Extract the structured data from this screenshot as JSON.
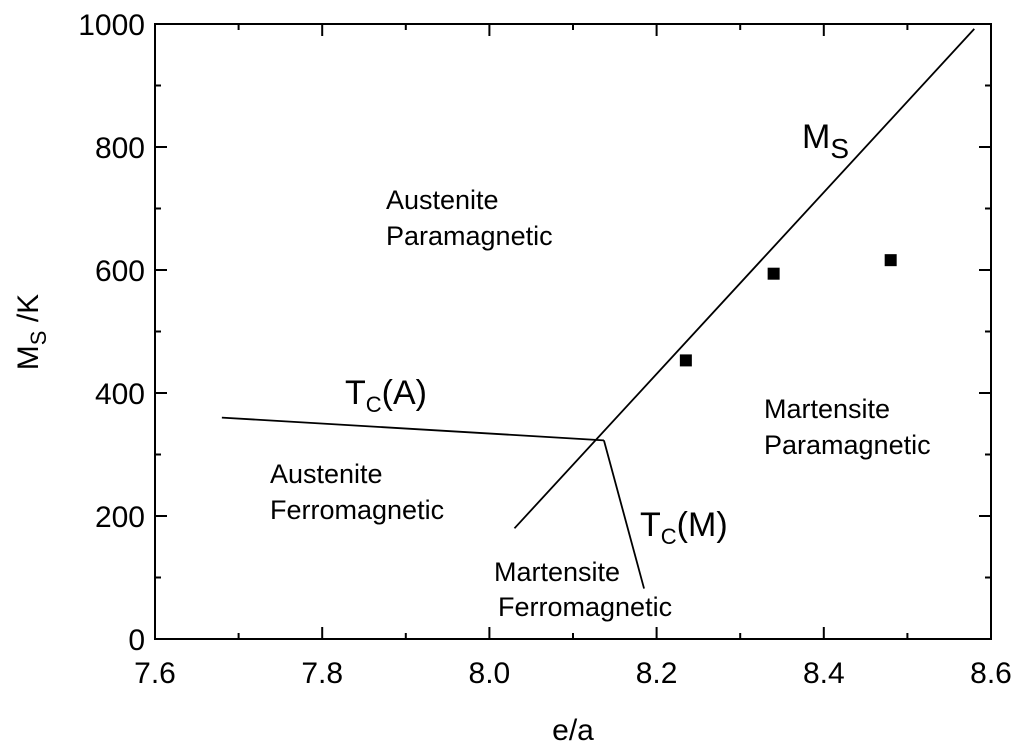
{
  "chart_data": {
    "type": "scatter",
    "xlabel": "e/a",
    "ylabel": {
      "main": "M",
      "sub": "S",
      "suffix": " /K"
    },
    "xlim": [
      7.6,
      8.6
    ],
    "ylim": [
      0,
      1000
    ],
    "xticks": [
      "7.6",
      "7.8",
      "8.0",
      "8.2",
      "8.4",
      "8.6"
    ],
    "yticks": [
      "0",
      "200",
      "400",
      "600",
      "800",
      "1000"
    ],
    "grid": false,
    "points": [
      {
        "x": 8.235,
        "y": 453
      },
      {
        "x": 8.34,
        "y": 594
      },
      {
        "x": 8.48,
        "y": 616
      }
    ],
    "lines": [
      {
        "name": "Ms",
        "points": [
          [
            8.03,
            180
          ],
          [
            8.58,
            992
          ]
        ]
      },
      {
        "name": "Tc(A)",
        "points": [
          [
            7.68,
            360
          ],
          [
            8.137,
            323
          ]
        ]
      },
      {
        "name": "Tc(M)",
        "points": [
          [
            8.137,
            323
          ],
          [
            8.185,
            82
          ]
        ]
      }
    ],
    "curve_labels": {
      "ms": {
        "main": "M",
        "sub": "S"
      },
      "tca": {
        "main": "T",
        "sub": "C",
        "suffix": "(A)"
      },
      "tcm": {
        "main": "T",
        "sub": "C",
        "suffix": "(M)"
      }
    },
    "regions": {
      "austenite_para": [
        "Austenite",
        "Paramagnetic"
      ],
      "austenite_ferro": [
        "Austenite",
        "Ferromagnetic"
      ],
      "martensite_para": [
        "Martensite",
        "Paramagnetic"
      ],
      "martensite_ferro": [
        "Martensite",
        "Ferromagnetic"
      ]
    }
  }
}
